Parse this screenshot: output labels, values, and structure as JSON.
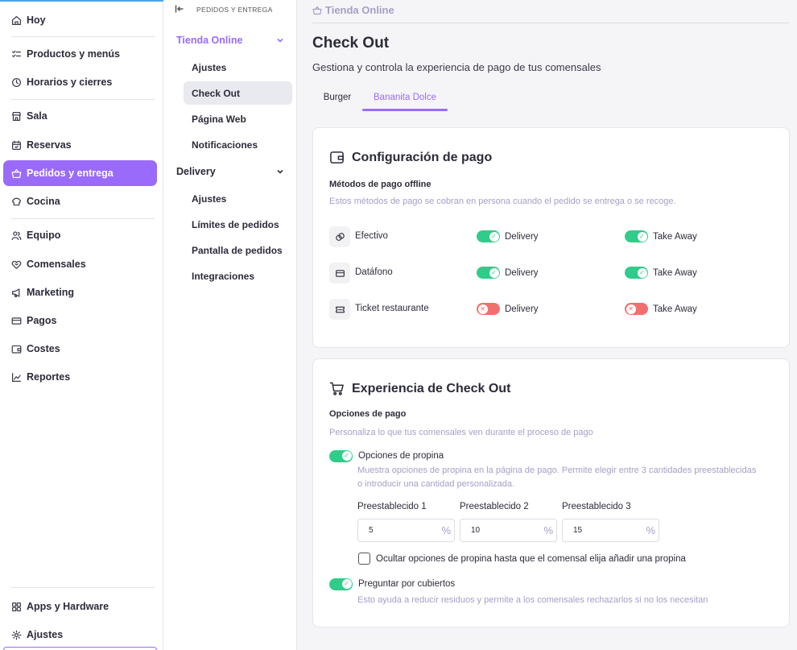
{
  "sidebar": {
    "items": [
      {
        "label": "Hoy",
        "icon": "home-icon"
      },
      {
        "label": "Productos y menús",
        "icon": "list-check-icon"
      },
      {
        "label": "Horarios y cierres",
        "icon": "clock-icon"
      },
      {
        "label": "Sala",
        "icon": "store-icon"
      },
      {
        "label": "Reservas",
        "icon": "calendar-icon"
      },
      {
        "label": "Pedidos y entrega",
        "icon": "basket-icon"
      },
      {
        "label": "Cocina",
        "icon": "chef-hat-icon"
      },
      {
        "label": "Equipo",
        "icon": "users-icon"
      },
      {
        "label": "Comensales",
        "icon": "heart-handshake-icon"
      },
      {
        "label": "Marketing",
        "icon": "megaphone-icon"
      },
      {
        "label": "Pagos",
        "icon": "credit-card-icon"
      },
      {
        "label": "Costes",
        "icon": "wallet-icon"
      },
      {
        "label": "Reportes",
        "icon": "chart-icon"
      }
    ],
    "bottom": [
      {
        "label": "Apps y Hardware",
        "icon": "apps-icon"
      },
      {
        "label": "Ajustes",
        "icon": "gear-icon"
      }
    ],
    "active_color": "#9a6bfa"
  },
  "subnav": {
    "breadcrumb": "PEDIDOS Y ENTREGA",
    "group1": {
      "label": "Tienda Online",
      "items": [
        "Ajustes",
        "Check Out",
        "Página Web",
        "Notificaciones"
      ]
    },
    "group2": {
      "label": "Delivery",
      "items": [
        "Ajustes",
        "Límites de pedidos",
        "Pantalla de pedidos",
        "Integraciones"
      ]
    }
  },
  "main": {
    "breadcrumb": "Tienda Online",
    "title": "Check Out",
    "subtitle": "Gestiona y controla la experiencia de pago de tus comensales",
    "tabs": [
      "Burger",
      "Bananita Dolce"
    ],
    "active_tab": "Bananita Dolce"
  },
  "payment_config": {
    "title": "Configuración de pago",
    "section_label": "Métodos de pago offline",
    "section_help": "Estos métodos de pago se cobran en persona cuando el pedido se entrega o se recoge.",
    "methods": [
      {
        "name": "Efectivo",
        "icon": "coins-icon",
        "delivery_label": "Delivery",
        "delivery_on": true,
        "takeaway_label": "Take Away",
        "takeaway_on": true
      },
      {
        "name": "Datáfono",
        "icon": "card-reader-icon",
        "delivery_label": "Delivery",
        "delivery_on": true,
        "takeaway_label": "Take Away",
        "takeaway_on": true
      },
      {
        "name": "Ticket restaurante",
        "icon": "ticket-icon",
        "delivery_label": "Delivery",
        "delivery_on": false,
        "takeaway_label": "Take Away",
        "takeaway_on": false
      }
    ],
    "on_color": "#2fcc8a",
    "off_color": "#f26f6f"
  },
  "checkout_experience": {
    "title": "Experiencia de Check Out",
    "section_label": "Opciones de pago",
    "section_help": "Personaliza lo que tus comensales ven durante el proceso de pago",
    "tip_option": {
      "label": "Opciones de propina",
      "enabled": true,
      "help": "Muestra opciones de propina en la página de pago. Permite elegir entre 3 cantidades preestablecidas o introducir una cantidad personalizada."
    },
    "presets": [
      {
        "label": "Preestablecido 1",
        "value": "5",
        "unit": "%"
      },
      {
        "label": "Preestablecido 2",
        "value": "10",
        "unit": "%"
      },
      {
        "label": "Preestablecido 3",
        "value": "15",
        "unit": "%"
      }
    ],
    "hide_tips_checkbox": {
      "label": "Ocultar opciones de propina hasta que el comensal elija añadir una propina",
      "checked": false
    },
    "cutlery_option": {
      "label": "Preguntar por cubiertos",
      "enabled": true,
      "help": "Esto ayuda a reducir residuos y permite a los comensales rechazarlos si no los necesitan"
    }
  }
}
